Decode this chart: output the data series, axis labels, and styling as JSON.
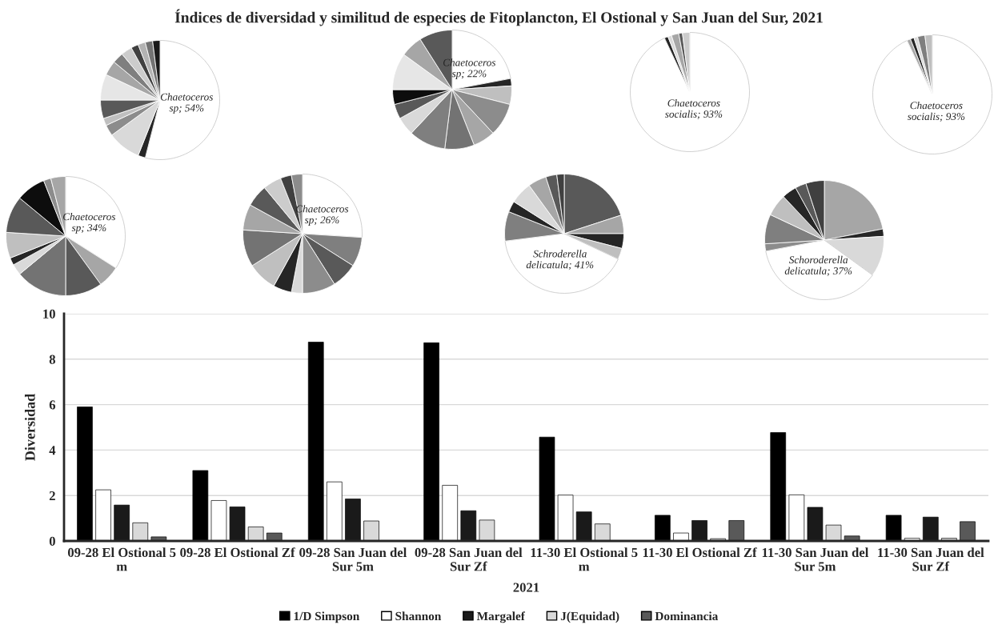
{
  "chart_data": [
    {
      "type": "bar",
      "title": "Índices de diversidad y similitud de especies de Fitoplancton, El Ostional y San Juan del Sur, 2021",
      "xlabel": "2021",
      "ylabel": "Diversidad",
      "categories": [
        "09-28 El Ostional 5\nm",
        "09-28 El Ostional Zf",
        "09-28 San Juan del\nSur 5m",
        "09-28 San Juan del\nSur Zf",
        "11-30 El Ostional 5\nm",
        "11-30 El Ostional Zf",
        "11-30 San Juan del\nSur 5m",
        "11-30 San Juan del\nSur Zf"
      ],
      "series": [
        {
          "name": "1/D Simpson",
          "color": "#000000",
          "values": [
            5.9,
            3.1,
            8.75,
            8.72,
            4.57,
            1.13,
            4.77,
            1.13
          ]
        },
        {
          "name": "Shannon",
          "color": "#ffffff",
          "values": [
            2.25,
            1.78,
            2.6,
            2.45,
            2.02,
            0.35,
            2.03,
            0.12
          ]
        },
        {
          "name": "Margalef",
          "color": "#1a1a1a",
          "values": [
            1.58,
            1.5,
            1.85,
            1.33,
            1.28,
            0.9,
            1.48,
            1.05
          ]
        },
        {
          "name": "J(Equidad)",
          "color": "#d9d9d9",
          "values": [
            0.8,
            0.62,
            0.88,
            0.92,
            0.75,
            0.1,
            0.7,
            0.12
          ]
        },
        {
          "name": "Dominancia",
          "color": "#595959",
          "values": [
            0.18,
            0.35,
            null,
            null,
            null,
            0.9,
            0.22,
            0.85
          ]
        }
      ],
      "ylim": [
        0,
        10
      ],
      "yticks": [
        0,
        2,
        4,
        6,
        8,
        10
      ],
      "grid": "y",
      "legend": "bottom"
    },
    {
      "type": "pie",
      "categories": [
        "Chaetoceros sp",
        null,
        null,
        null,
        null,
        null,
        null,
        null,
        null,
        null,
        null,
        null,
        null,
        null
      ],
      "values": [
        54,
        2,
        9,
        3,
        2,
        5,
        7,
        4,
        3,
        3,
        2,
        2,
        2,
        2
      ],
      "value_labels": [
        "54%",
        null,
        null,
        null,
        null,
        null,
        null,
        null,
        null,
        null,
        null,
        null,
        null,
        null
      ],
      "colors": [
        "#ffffff",
        "#262626",
        "#d9d9d9",
        "#8c8c8c",
        "#bfbfbf",
        "#595959",
        "#e6e6e6",
        "#a6a6a6",
        "#7f7f7f",
        "#cccccc",
        "#404040",
        "#b3b3b3",
        "#737373",
        "#1a1a1a"
      ]
    },
    {
      "type": "pie",
      "categories": [
        "Chaetoceros sp",
        null,
        null,
        null,
        null,
        null,
        null,
        null,
        null,
        null,
        null,
        null,
        null
      ],
      "values": [
        22,
        2,
        5,
        9,
        6,
        8,
        10,
        5,
        4,
        4,
        10,
        6,
        9
      ],
      "value_labels": [
        "22%",
        null,
        null,
        null,
        null,
        null,
        null,
        null,
        null,
        null,
        null,
        null,
        null
      ],
      "colors": [
        "#ffffff",
        "#262626",
        "#bfbfbf",
        "#8c8c8c",
        "#a6a6a6",
        "#737373",
        "#7f7f7f",
        "#d9d9d9",
        "#595959",
        "#0d0d0d",
        "#e6e6e6",
        "#a6a6a6",
        "#595959"
      ]
    },
    {
      "type": "pie",
      "categories": [
        "Chaetoceros socialis",
        null,
        null,
        null,
        null,
        null
      ],
      "values": [
        93,
        1,
        1,
        2,
        1,
        2
      ],
      "value_labels": [
        "93%",
        null,
        null,
        null,
        null,
        null
      ],
      "colors": [
        "#ffffff",
        "#262626",
        "#d9d9d9",
        "#a6a6a6",
        "#595959",
        "#cccccc"
      ]
    },
    {
      "type": "pie",
      "categories": [
        "Chaetoceros socialis",
        null,
        null,
        null,
        null,
        null
      ],
      "values": [
        93,
        1,
        1,
        1,
        2,
        2
      ],
      "value_labels": [
        "93%",
        null,
        null,
        null,
        null,
        null
      ],
      "colors": [
        "#ffffff",
        "#a6a6a6",
        "#262626",
        "#d9d9d9",
        "#7f7f7f",
        "#bfbfbf"
      ]
    },
    {
      "type": "pie",
      "categories": [
        "Chaetoceros sp",
        null,
        null,
        null,
        null,
        null,
        null,
        null,
        null,
        null,
        null
      ],
      "values": [
        34,
        6,
        10,
        14,
        3,
        2,
        7,
        10,
        8,
        2,
        4
      ],
      "value_labels": [
        "34%",
        null,
        null,
        null,
        null,
        null,
        null,
        null,
        null,
        null,
        null
      ],
      "colors": [
        "#ffffff",
        "#a6a6a6",
        "#595959",
        "#737373",
        "#d9d9d9",
        "#262626",
        "#bfbfbf",
        "#595959",
        "#0d0d0d",
        "#8c8c8c",
        "#a6a6a6"
      ]
    },
    {
      "type": "pie",
      "categories": [
        "Chaetoceros sp",
        null,
        null,
        null,
        null,
        null,
        null,
        null,
        null,
        null,
        null,
        null,
        null
      ],
      "values": [
        26,
        8,
        7,
        9,
        3,
        5,
        8,
        10,
        7,
        6,
        5,
        3,
        3
      ],
      "value_labels": [
        "26%",
        null,
        null,
        null,
        null,
        null,
        null,
        null,
        null,
        null,
        null,
        null,
        null
      ],
      "colors": [
        "#ffffff",
        "#7f7f7f",
        "#595959",
        "#8c8c8c",
        "#d9d9d9",
        "#262626",
        "#bfbfbf",
        "#737373",
        "#a6a6a6",
        "#595959",
        "#cccccc",
        "#404040",
        "#8c8c8c"
      ]
    },
    {
      "type": "pie",
      "categories": [
        null,
        null,
        null,
        null,
        "Schroderella delicatula",
        null,
        null,
        null,
        null,
        null,
        null
      ],
      "values": [
        20,
        5,
        4,
        3,
        41,
        8,
        3,
        6,
        5,
        3,
        2
      ],
      "value_labels": [
        null,
        null,
        null,
        null,
        "41%",
        null,
        null,
        null,
        null,
        null,
        null
      ],
      "colors": [
        "#595959",
        "#a6a6a6",
        "#262626",
        "#bfbfbf",
        "#ffffff",
        "#7f7f7f",
        "#262626",
        "#d9d9d9",
        "#a6a6a6",
        "#595959",
        "#404040"
      ]
    },
    {
      "type": "pie",
      "categories": [
        null,
        null,
        null,
        "Schoroderella delicatula",
        null,
        null,
        null,
        null,
        null,
        null
      ],
      "values": [
        22,
        2,
        11,
        37,
        2,
        8,
        6,
        4,
        3,
        5
      ],
      "value_labels": [
        null,
        null,
        null,
        "37%",
        null,
        null,
        null,
        null,
        null,
        null
      ],
      "colors": [
        "#a6a6a6",
        "#262626",
        "#d9d9d9",
        "#ffffff",
        "#8c8c8c",
        "#7f7f7f",
        "#bfbfbf",
        "#262626",
        "#595959",
        "#404040"
      ]
    }
  ]
}
